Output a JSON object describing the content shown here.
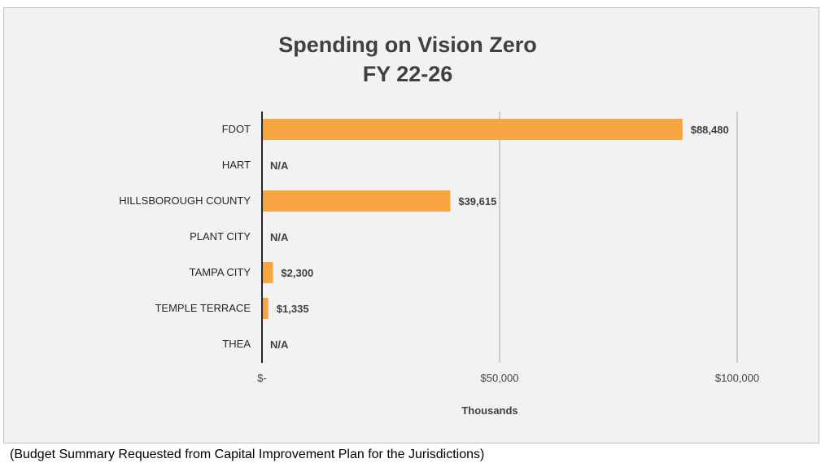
{
  "chart_data": {
    "type": "bar",
    "orientation": "horizontal",
    "title_lines": [
      "Spending on Vision Zero",
      "FY 22-26"
    ],
    "xlabel": "Thousands",
    "ylabel": "",
    "categories": [
      "FDOT",
      "HART",
      "HILLSBOROUGH COUNTY",
      "PLANT CITY",
      "TAMPA CITY",
      "TEMPLE TERRACE",
      "THEA"
    ],
    "values": [
      88480,
      0,
      39615,
      0,
      2300,
      1335,
      0
    ],
    "data_labels": [
      "$88,480",
      "N/A",
      "$39,615",
      "N/A",
      "$2,300",
      "$1,335",
      "N/A"
    ],
    "xlim": [
      0,
      100000
    ],
    "x_ticks": [
      0,
      50000,
      100000
    ],
    "x_tick_labels": [
      "$-",
      "$50,000",
      "$100,000"
    ],
    "grid": "vertical",
    "bar_color": "#f7a540",
    "legend": "none"
  },
  "caption": "(Budget Summary Requested from Capital Improvement Plan for the Jurisdictions)"
}
